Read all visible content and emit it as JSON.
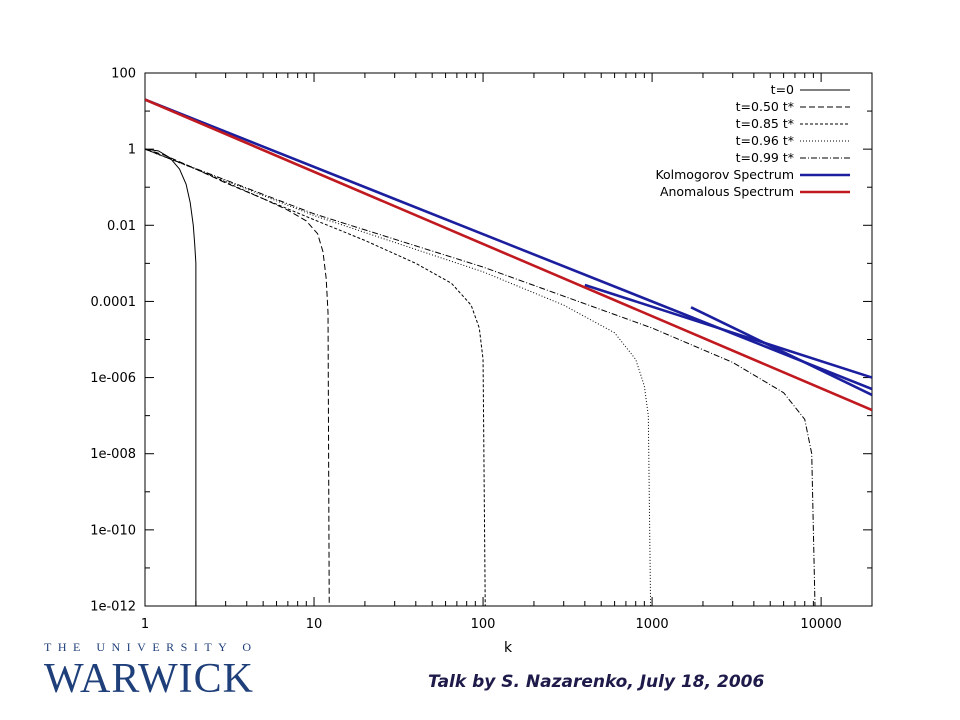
{
  "chart_data": {
    "type": "line",
    "xscale": "log",
    "yscale": "log",
    "xlim": [
      1,
      20000
    ],
    "ylim": [
      1e-12,
      100
    ],
    "xlabel": "k",
    "ylabel": "",
    "grid": false,
    "legend_position": "top-right",
    "x_ticks": [
      {
        "value": 1,
        "label": "1"
      },
      {
        "value": 10,
        "label": "10"
      },
      {
        "value": 100,
        "label": "100"
      },
      {
        "value": 1000,
        "label": "1000"
      },
      {
        "value": 10000,
        "label": "10000"
      }
    ],
    "y_ticks": [
      {
        "value": 100,
        "label": "100"
      },
      {
        "value": 1,
        "label": "1"
      },
      {
        "value": 0.01,
        "label": "0.01"
      },
      {
        "value": 0.0001,
        "label": "0.0001"
      },
      {
        "value": 1e-06,
        "label": "1e-006"
      },
      {
        "value": 1e-08,
        "label": "1e-008"
      },
      {
        "value": 1e-10,
        "label": "1e-010"
      },
      {
        "value": 1e-12,
        "label": "1e-012"
      }
    ],
    "series": [
      {
        "name": "t=0",
        "color": "#000000",
        "dash": "",
        "points": [
          [
            1,
            1
          ],
          [
            1.2,
            0.9
          ],
          [
            1.4,
            0.6
          ],
          [
            1.6,
            0.3
          ],
          [
            1.75,
            0.12
          ],
          [
            1.85,
            0.04
          ],
          [
            1.93,
            0.01
          ],
          [
            1.97,
            0.003
          ],
          [
            2.0,
            0.001
          ],
          [
            2.0,
            1e-12
          ]
        ]
      },
      {
        "name": "t=0.50 t*",
        "color": "#000000",
        "dash": "6,3",
        "points": [
          [
            1,
            1
          ],
          [
            1.3,
            0.7
          ],
          [
            2,
            0.3
          ],
          [
            3,
            0.13
          ],
          [
            5,
            0.05
          ],
          [
            7,
            0.025
          ],
          [
            9,
            0.013
          ],
          [
            10.5,
            0.006
          ],
          [
            11.3,
            0.002
          ],
          [
            11.8,
            0.0004
          ],
          [
            12.1,
            5e-05
          ],
          [
            12.3,
            1e-12
          ]
        ]
      },
      {
        "name": "t=0.85 t*",
        "color": "#000000",
        "dash": "3,2",
        "points": [
          [
            1,
            1
          ],
          [
            2,
            0.3
          ],
          [
            5,
            0.05
          ],
          [
            10,
            0.014
          ],
          [
            20,
            0.004
          ],
          [
            40,
            0.001
          ],
          [
            65,
            0.0003
          ],
          [
            85,
            8e-05
          ],
          [
            95,
            2e-05
          ],
          [
            100,
            3e-06
          ],
          [
            103,
            1e-12
          ]
        ]
      },
      {
        "name": "t=0.96 t*",
        "color": "#000000",
        "dash": "1,2",
        "points": [
          [
            1,
            1
          ],
          [
            10,
            0.018
          ],
          [
            100,
            0.0006
          ],
          [
            300,
            8e-05
          ],
          [
            600,
            1.5e-05
          ],
          [
            800,
            3e-06
          ],
          [
            900,
            6e-07
          ],
          [
            950,
            1e-07
          ],
          [
            980,
            1e-12
          ]
        ]
      },
      {
        "name": "t=0.99 t*",
        "color": "#000000",
        "dash": "6,2,1,2",
        "points": [
          [
            1,
            1
          ],
          [
            10,
            0.02
          ],
          [
            100,
            0.0008
          ],
          [
            1000,
            2e-05
          ],
          [
            3000,
            2.5e-06
          ],
          [
            6000,
            4e-07
          ],
          [
            8000,
            8e-08
          ],
          [
            8800,
            1e-08
          ],
          [
            9200,
            1e-12
          ]
        ]
      },
      {
        "name": "Kolmogorov Spectrum",
        "color": "#1b1f9e",
        "dash": "",
        "width": 2.6,
        "lines": [
          [
            [
              1,
              20
            ],
            [
              20000,
              5e-07
            ]
          ],
          [
            [
              400,
              0.00027
            ],
            [
              20000,
              1e-06
            ]
          ],
          [
            [
              1700,
              7e-05
            ],
            [
              20000,
              3.5e-07
            ]
          ]
        ]
      },
      {
        "name": "Anomalous Spectrum",
        "color": "#c0191f",
        "dash": "",
        "width": 2.6,
        "lines": [
          [
            [
              1,
              20
            ],
            [
              20000,
              1.4e-07
            ]
          ]
        ]
      }
    ]
  },
  "footer": {
    "logo_top": "THE UNIVERSITY OF",
    "logo_main": "WARWICK",
    "credit": "Talk by S. Nazarenko, July 18, 2006"
  }
}
